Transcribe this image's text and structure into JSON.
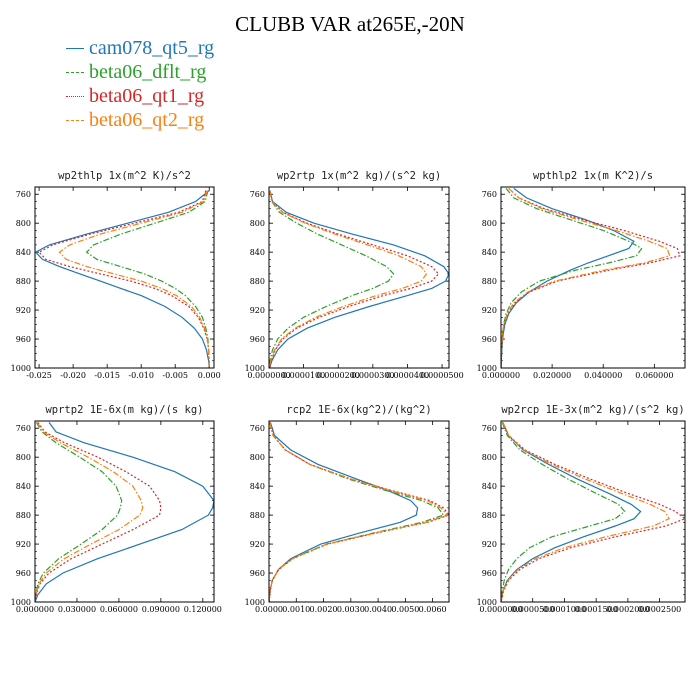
{
  "title": "CLUBB VAR at265E,-20N",
  "legend": [
    {
      "name": "cam078_qt5_rg",
      "color": "#1f77b4",
      "dash": "solid"
    },
    {
      "name": "beta06_dflt_rg",
      "color": "#2ca02c",
      "dash": "dashdot"
    },
    {
      "name": "beta06_qt1_rg",
      "color": "#d62728",
      "dash": "dot"
    },
    {
      "name": "beta06_qt2_rg",
      "color": "#ff7f0e",
      "dash": "dashdot"
    }
  ],
  "chart_data": [
    {
      "type": "line",
      "title": "wp2thlp   1x(m^2 K)/s^2",
      "ylim": [
        1000,
        750
      ],
      "yticks": [
        760,
        800,
        840,
        880,
        920,
        960,
        1000
      ],
      "xlim": [
        -0.0256,
        0.0007
      ],
      "xticks": [
        -0.025,
        -0.02,
        -0.015,
        -0.01,
        -0.005,
        0.0
      ],
      "xticklabels": [
        "-0.025",
        "-0.020",
        "-0.015",
        "-0.010",
        "-0.005",
        "0.000"
      ],
      "y": [
        755,
        770,
        785,
        800,
        815,
        830,
        840,
        850,
        860,
        870,
        880,
        890,
        900,
        915,
        930,
        945,
        960,
        975,
        990,
        1000
      ],
      "series": [
        {
          "values": [
            0.0,
            -0.002,
            -0.006,
            -0.012,
            -0.018,
            -0.0235,
            -0.0255,
            -0.0245,
            -0.022,
            -0.019,
            -0.016,
            -0.013,
            -0.01,
            -0.0065,
            -0.004,
            -0.0022,
            -0.001,
            -0.0004,
            -0.0001,
            0.0
          ]
        },
        {
          "values": [
            -0.0002,
            -0.0006,
            -0.003,
            -0.008,
            -0.013,
            -0.017,
            -0.018,
            -0.0165,
            -0.013,
            -0.0095,
            -0.007,
            -0.005,
            -0.0035,
            -0.002,
            -0.001,
            -0.0005,
            -0.0002,
            -0.0001,
            0.0,
            0.0
          ]
        },
        {
          "values": [
            -0.0005,
            -0.001,
            -0.0045,
            -0.011,
            -0.0175,
            -0.023,
            -0.025,
            -0.024,
            -0.0205,
            -0.016,
            -0.0115,
            -0.008,
            -0.0055,
            -0.003,
            -0.0016,
            -0.0008,
            -0.0003,
            -0.0001,
            0.0,
            0.0
          ]
        },
        {
          "values": [
            -0.0003,
            -0.0008,
            -0.004,
            -0.01,
            -0.016,
            -0.0205,
            -0.022,
            -0.021,
            -0.018,
            -0.014,
            -0.01,
            -0.007,
            -0.0048,
            -0.0026,
            -0.0014,
            -0.0007,
            -0.0003,
            -0.0001,
            0.0,
            0.0
          ]
        }
      ]
    },
    {
      "type": "line",
      "title": "wp2rtp   1x(m^2 kg)/(s^2 kg)",
      "ylim": [
        1000,
        750
      ],
      "yticks": [
        760,
        800,
        840,
        880,
        920,
        960,
        1000
      ],
      "xlim": [
        0,
        5.2e-05
      ],
      "xticks": [
        0,
        1e-05,
        2e-05,
        3e-05,
        4e-05,
        5e-05
      ],
      "xticklabels": [
        "0.0000000",
        "0.0000100",
        "0.0000200",
        "0.0000300",
        "0.0000400",
        "0.0000500"
      ],
      "y": [
        755,
        770,
        785,
        800,
        815,
        830,
        845,
        860,
        870,
        880,
        890,
        900,
        915,
        930,
        945,
        960,
        975,
        990,
        1000
      ],
      "series": [
        {
          "values": [
            3e-07,
            1e-06,
            5e-06,
            1.3e-05,
            2.4e-05,
            3.6e-05,
            4.5e-05,
            5.05e-05,
            5.2e-05,
            5.1e-05,
            4.7e-05,
            4e-05,
            2.9e-05,
            1.9e-05,
            1.1e-05,
            5.5e-06,
            2.5e-06,
            8e-07,
            2e-07
          ]
        },
        {
          "values": [
            2e-07,
            8e-07,
            3e-06,
            8e-06,
            1.4e-05,
            2.1e-05,
            2.8e-05,
            3.4e-05,
            3.6e-05,
            3.45e-05,
            3e-05,
            2.4e-05,
            1.65e-05,
            1e-05,
            5.5e-06,
            2.5e-06,
            1e-06,
            3e-07,
            1e-07
          ]
        },
        {
          "values": [
            2e-07,
            9e-07,
            4e-06,
            1.1e-05,
            2e-05,
            3e-05,
            4e-05,
            4.7e-05,
            4.9e-05,
            4.7e-05,
            4.1e-05,
            3.3e-05,
            2.3e-05,
            1.45e-05,
            8e-06,
            4e-06,
            1.8e-06,
            6e-07,
            2e-07
          ]
        },
        {
          "values": [
            2e-07,
            9e-07,
            3.8e-06,
            1.05e-05,
            1.9e-05,
            2.85e-05,
            3.75e-05,
            4.4e-05,
            4.55e-05,
            4.4e-05,
            3.85e-05,
            3.1e-05,
            2.15e-05,
            1.35e-05,
            7.5e-06,
            3.6e-06,
            1.6e-06,
            5e-07,
            1e-07
          ]
        }
      ]
    },
    {
      "type": "line",
      "title": "wpthlp2   1x(m K^2)/s",
      "ylim": [
        1000,
        750
      ],
      "yticks": [
        760,
        800,
        840,
        880,
        920,
        960,
        1000
      ],
      "xlim": [
        0,
        0.072
      ],
      "xticks": [
        0,
        0.02,
        0.04,
        0.06
      ],
      "xticklabels": [
        "0.000000",
        "0.020000",
        "0.040000",
        "0.060000"
      ],
      "y": [
        752,
        765,
        780,
        795,
        810,
        825,
        835,
        845,
        855,
        865,
        880,
        895,
        910,
        925,
        940,
        955,
        970,
        985,
        1000
      ],
      "series": [
        {
          "values": [
            0.005,
            0.01,
            0.02,
            0.033,
            0.044,
            0.052,
            0.05,
            0.042,
            0.034,
            0.027,
            0.018,
            0.011,
            0.006,
            0.003,
            0.0015,
            0.0008,
            0.0004,
            0.0002,
            0.0
          ]
        },
        {
          "values": [
            0.002,
            0.005,
            0.014,
            0.027,
            0.04,
            0.05,
            0.055,
            0.053,
            0.042,
            0.029,
            0.015,
            0.008,
            0.004,
            0.002,
            0.001,
            0.0005,
            0.0003,
            0.0001,
            0.0
          ]
        },
        {
          "values": [
            0.003,
            0.007,
            0.017,
            0.032,
            0.048,
            0.062,
            0.069,
            0.07,
            0.058,
            0.042,
            0.022,
            0.011,
            0.0055,
            0.0025,
            0.0012,
            0.0006,
            0.0003,
            0.0001,
            0.0
          ]
        },
        {
          "values": [
            0.003,
            0.007,
            0.016,
            0.03,
            0.045,
            0.058,
            0.065,
            0.066,
            0.056,
            0.04,
            0.021,
            0.0105,
            0.005,
            0.0024,
            0.0011,
            0.0005,
            0.0002,
            0.0001,
            0.0
          ]
        }
      ]
    },
    {
      "type": "line",
      "title": "wprtp2   1E-6x(m kg)/(s kg)",
      "ylim": [
        1000,
        750
      ],
      "yticks": [
        760,
        800,
        840,
        880,
        920,
        960,
        1000
      ],
      "xlim": [
        0,
        0.128
      ],
      "xticks": [
        0,
        0.03,
        0.06,
        0.09,
        0.12
      ],
      "xticklabels": [
        "0.000000",
        "0.030000",
        "0.060000",
        "0.090000",
        "0.120000"
      ],
      "y": [
        752,
        765,
        780,
        800,
        820,
        840,
        860,
        870,
        880,
        900,
        920,
        940,
        960,
        975,
        990,
        1000
      ],
      "series": [
        {
          "values": [
            0.01,
            0.015,
            0.035,
            0.07,
            0.1,
            0.12,
            0.128,
            0.127,
            0.124,
            0.105,
            0.075,
            0.045,
            0.02,
            0.008,
            0.002,
            0.0
          ]
        },
        {
          "values": [
            0.001,
            0.005,
            0.015,
            0.032,
            0.048,
            0.058,
            0.062,
            0.061,
            0.059,
            0.048,
            0.033,
            0.017,
            0.006,
            0.002,
            0.0005,
            0.0
          ]
        },
        {
          "values": [
            0.002,
            0.007,
            0.021,
            0.045,
            0.065,
            0.082,
            0.089,
            0.09,
            0.089,
            0.07,
            0.048,
            0.026,
            0.01,
            0.0035,
            0.0008,
            0.0
          ]
        },
        {
          "values": [
            0.0015,
            0.006,
            0.018,
            0.038,
            0.056,
            0.07,
            0.076,
            0.077,
            0.075,
            0.06,
            0.04,
            0.021,
            0.008,
            0.0028,
            0.0006,
            0.0
          ]
        }
      ]
    },
    {
      "type": "line",
      "title": "rcp2   1E-6x(kg^2)/(kg^2)",
      "ylim": [
        1000,
        750
      ],
      "yticks": [
        760,
        800,
        840,
        880,
        920,
        960,
        1000
      ],
      "xlim": [
        0,
        0.0066
      ],
      "xticks": [
        0,
        0.001,
        0.002,
        0.003,
        0.004,
        0.005,
        0.006
      ],
      "xticklabels": [
        "0.0000",
        "0.0010",
        "0.0020",
        "0.0030",
        "0.0040",
        "0.0050",
        "0.0060"
      ],
      "y": [
        752,
        770,
        790,
        810,
        830,
        845,
        860,
        870,
        880,
        890,
        905,
        920,
        940,
        955,
        970,
        985,
        1000
      ],
      "series": [
        {
          "values": [
            5e-05,
            0.0002,
            0.0008,
            0.0018,
            0.0032,
            0.0043,
            0.0052,
            0.00545,
            0.0054,
            0.0048,
            0.0033,
            0.0019,
            0.0008,
            0.00035,
            0.00012,
            4e-05,
            0.0
          ]
        },
        {
          "values": [
            3e-05,
            0.00015,
            0.0006,
            0.0015,
            0.0029,
            0.0042,
            0.0056,
            0.0062,
            0.0064,
            0.0056,
            0.0038,
            0.0021,
            0.00085,
            0.00035,
            0.00012,
            4e-05,
            0.0
          ]
        },
        {
          "values": [
            3e-05,
            0.00015,
            0.0006,
            0.0015,
            0.003,
            0.0044,
            0.0059,
            0.0064,
            0.0066,
            0.0058,
            0.0039,
            0.00215,
            0.00088,
            0.00036,
            0.00012,
            4e-05,
            0.0
          ]
        },
        {
          "values": [
            3e-05,
            0.00015,
            0.0006,
            0.0015,
            0.003,
            0.00435,
            0.0058,
            0.0063,
            0.00655,
            0.00575,
            0.00385,
            0.00212,
            0.00086,
            0.00035,
            0.00012,
            4e-05,
            0.0
          ]
        }
      ]
    },
    {
      "type": "line",
      "title": "wp2rcp   1E-3x(m^2 kg)/(s^2 kg)",
      "ylim": [
        1000,
        750
      ],
      "yticks": [
        760,
        800,
        840,
        880,
        920,
        960,
        1000
      ],
      "xlim": [
        0,
        0.00029
      ],
      "xticks": [
        0,
        5e-05,
        0.0001,
        0.00015,
        0.0002,
        0.00025
      ],
      "xticklabels": [
        "0.0000000",
        "0.0000500",
        "0.0001000",
        "0.0001500",
        "0.0002000",
        "0.0002500"
      ],
      "y": [
        752,
        770,
        790,
        810,
        830,
        850,
        865,
        875,
        885,
        895,
        910,
        925,
        940,
        955,
        970,
        985,
        1000
      ],
      "series": [
        {
          "values": [
            3e-06,
            1.2e-05,
            3.5e-05,
            7.5e-05,
            0.00012,
            0.00017,
            0.000205,
            0.00022,
            0.00021,
            0.00018,
            0.00013,
            8.5e-05,
            5e-05,
            2.5e-05,
            1e-05,
            3e-06,
            0.0
          ]
        },
        {
          "values": [
            2e-06,
            1e-05,
            3e-05,
            6.5e-05,
            0.000105,
            0.00015,
            0.000185,
            0.000195,
            0.00018,
            0.00014,
            8e-05,
            4.5e-05,
            2.5e-05,
            1.2e-05,
            5e-06,
            2e-06,
            0.0
          ]
        },
        {
          "values": [
            3e-06,
            1.2e-05,
            3.8e-05,
            8.5e-05,
            0.00014,
            0.0002,
            0.00025,
            0.000275,
            0.00029,
            0.00026,
            0.00018,
            0.00011,
            6e-05,
            3e-05,
            1.2e-05,
            4e-06,
            0.0
          ]
        },
        {
          "values": [
            3e-06,
            1.2e-05,
            3.6e-05,
            8e-05,
            0.000132,
            0.00019,
            0.000235,
            0.000258,
            0.000265,
            0.00024,
            0.000165,
            0.0001,
            5.5e-05,
            2.7e-05,
            1.1e-05,
            3e-06,
            0.0
          ]
        }
      ]
    }
  ]
}
